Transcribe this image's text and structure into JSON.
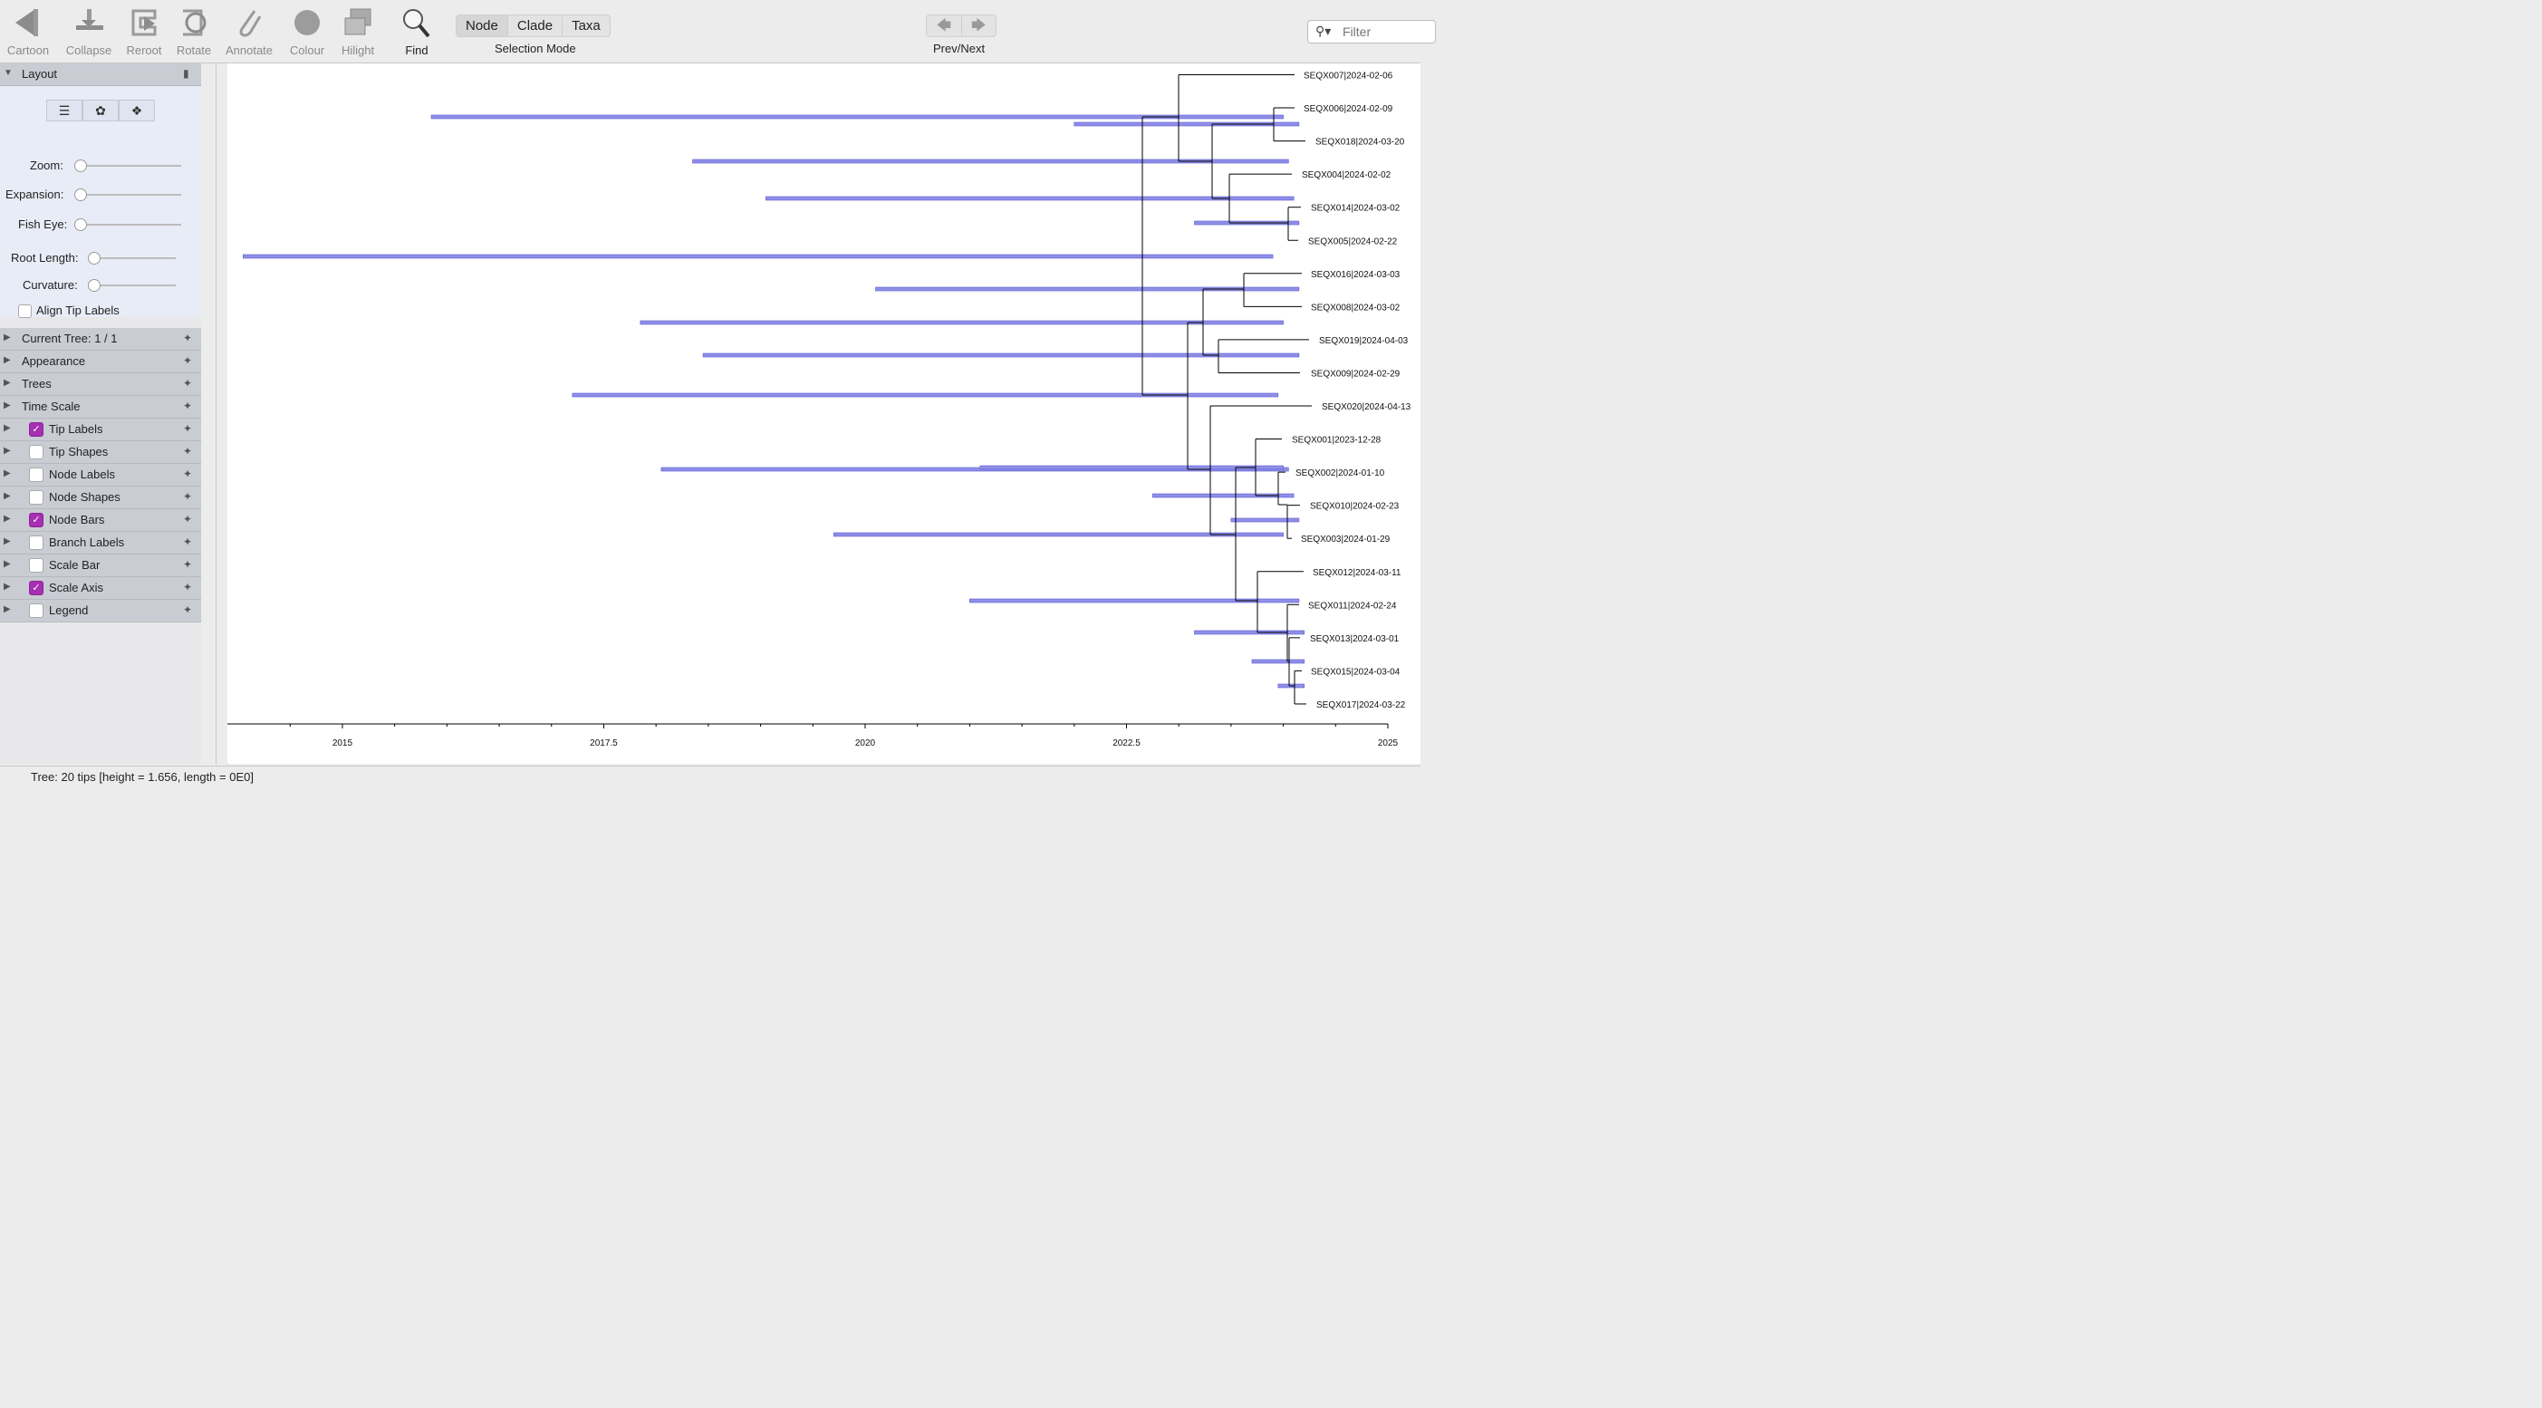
{
  "toolbar": {
    "tools": [
      {
        "label": "Cartoon",
        "icon": "cartoon-icon"
      },
      {
        "label": "Collapse",
        "icon": "collapse-icon"
      },
      {
        "label": "Reroot",
        "icon": "reroot-icon"
      },
      {
        "label": "Rotate",
        "icon": "rotate-icon"
      },
      {
        "label": "Annotate",
        "icon": "annotate-icon"
      },
      {
        "label": "Colour",
        "icon": "colour-icon"
      },
      {
        "label": "Hilight",
        "icon": "hilight-icon"
      },
      {
        "label": "Find",
        "icon": "find-icon"
      }
    ],
    "selection_modes": [
      "Node",
      "Clade",
      "Taxa"
    ],
    "selected_mode": "Node",
    "selection_caption": "Selection Mode",
    "prevnext_caption": "Prev/Next",
    "filter_placeholder": "Filter"
  },
  "panel": {
    "layout_title": "Layout",
    "sliders": [
      {
        "label": "Zoom:",
        "value": 0
      },
      {
        "label": "Expansion:",
        "value": 0
      },
      {
        "label": "Fish Eye:",
        "value": 0
      },
      {
        "label": "Root Length:",
        "value": 0
      },
      {
        "label": "Curvature:",
        "value": 0
      }
    ],
    "align_tip_labels": "Align Tip Labels",
    "sections": [
      {
        "label": "Current Tree: 1 / 1",
        "checkbox": null
      },
      {
        "label": "Appearance",
        "checkbox": null
      },
      {
        "label": "Trees",
        "checkbox": null
      },
      {
        "label": "Time Scale",
        "checkbox": null
      },
      {
        "label": "Tip Labels",
        "checkbox": true
      },
      {
        "label": "Tip Shapes",
        "checkbox": false
      },
      {
        "label": "Node Labels",
        "checkbox": false
      },
      {
        "label": "Node Shapes",
        "checkbox": false
      },
      {
        "label": "Node Bars",
        "checkbox": true
      },
      {
        "label": "Branch Labels",
        "checkbox": false
      },
      {
        "label": "Scale Bar",
        "checkbox": false
      },
      {
        "label": "Scale Axis",
        "checkbox": true
      },
      {
        "label": "Legend",
        "checkbox": false
      }
    ],
    "accent_color": "#a62fb2"
  },
  "status_text": "Tree: 20 tips [height = 1.656, length = 0E0]",
  "chart_data": {
    "type": "tree",
    "axis": {
      "min": 2013.9,
      "max": 2025.0,
      "ticks": [
        2015,
        2017.5,
        2020,
        2022.5,
        2025
      ],
      "tick_labels": [
        "2015",
        "2017.5",
        "2020",
        "2022.5",
        "2025"
      ]
    },
    "tips": [
      "SEQX007|2024-02-06",
      "SEQX006|2024-02-09",
      "SEQX018|2024-03-20",
      "SEQX004|2024-02-02",
      "SEQX014|2024-03-02",
      "SEQX005|2024-02-22",
      "SEQX016|2024-03-03",
      "SEQX008|2024-03-02",
      "SEQX019|2024-04-03",
      "SEQX009|2024-02-29",
      "SEQX020|2024-04-13",
      "SEQX001|2023-12-28",
      "SEQX002|2024-01-10",
      "SEQX010|2024-02-23",
      "SEQX003|2024-01-29",
      "SEQX012|2024-03-11",
      "SEQX011|2024-02-24",
      "SEQX013|2024-03-01",
      "SEQX015|2024-03-04",
      "SEQX017|2024-03-22"
    ],
    "node_bars": [
      {
        "from": 2015.85,
        "to": 2024.0
      },
      {
        "from": 2022.0,
        "to": 2024.15
      },
      {
        "from": 2018.35,
        "to": 2024.05
      },
      {
        "from": 2019.05,
        "to": 2024.1
      },
      {
        "from": 2023.15,
        "to": 2024.15
      },
      {
        "from": 2014.05,
        "to": 2023.9
      },
      {
        "from": 2020.1,
        "to": 2024.15
      },
      {
        "from": 2017.85,
        "to": 2024.0
      },
      {
        "from": 2018.45,
        "to": 2024.15
      },
      {
        "from": 2017.2,
        "to": 2023.95
      },
      {
        "from": 2018.05,
        "to": 2024.05
      },
      {
        "from": 2021.1,
        "to": 2024.0
      },
      {
        "from": 2022.75,
        "to": 2024.1
      },
      {
        "from": 2019.7,
        "to": 2024.0
      },
      {
        "from": 2023.5,
        "to": 2024.15
      },
      {
        "from": 2021.0,
        "to": 2024.15
      },
      {
        "from": 2023.15,
        "to": 2024.2
      },
      {
        "from": 2023.7,
        "to": 2024.2
      },
      {
        "from": 2023.95,
        "to": 2024.2
      }
    ],
    "bar_color": "#8f8fe9",
    "line_color": "#000000"
  }
}
